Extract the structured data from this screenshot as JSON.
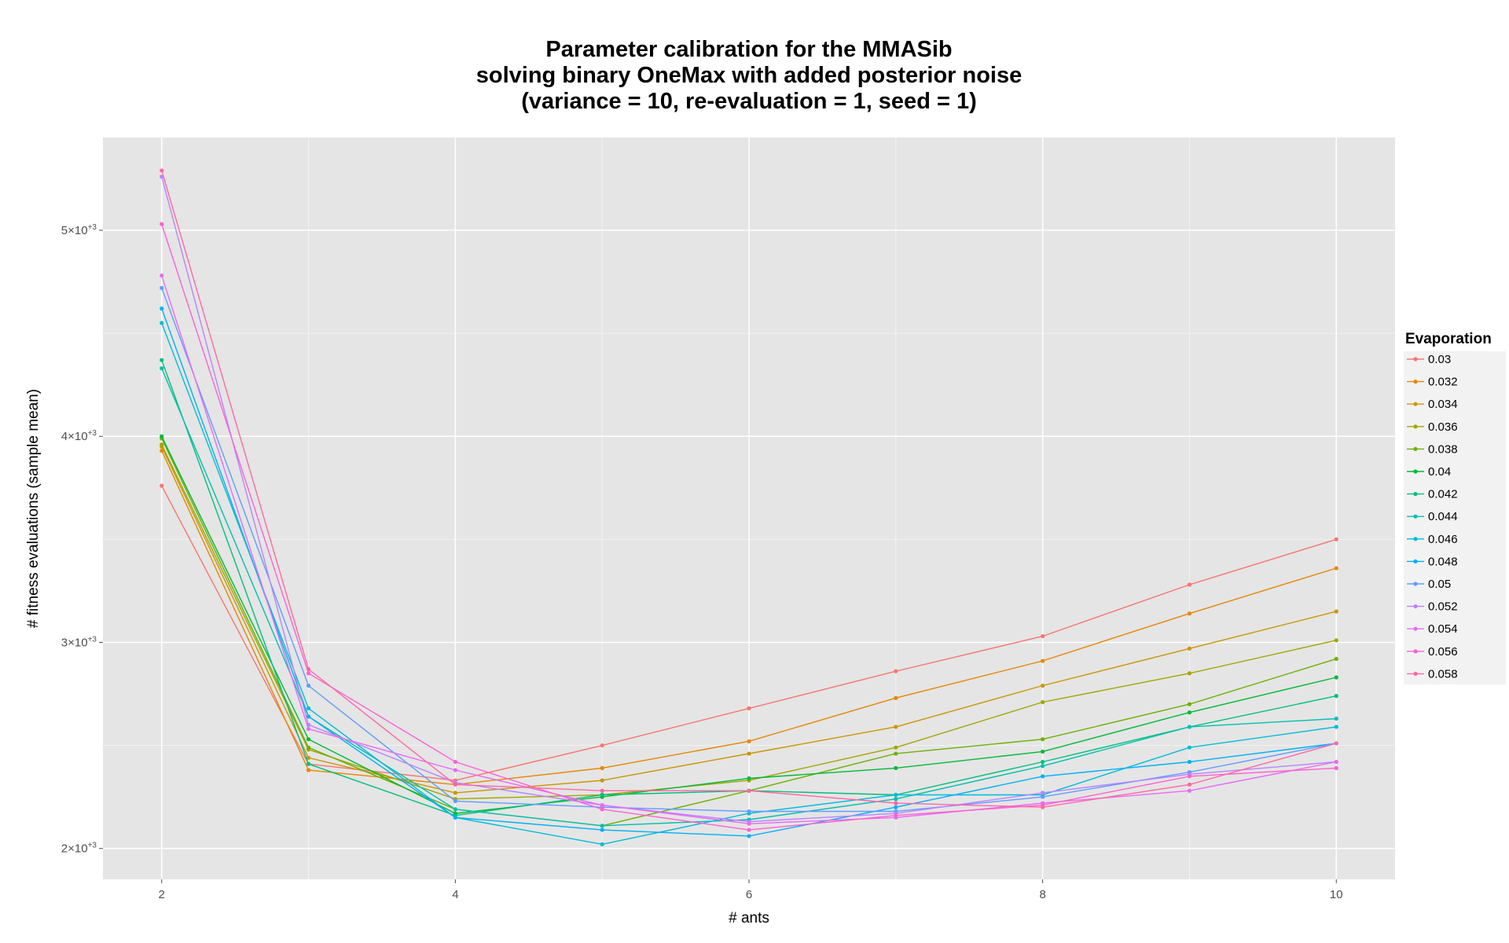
{
  "chart_data": {
    "type": "line",
    "title": [
      "Parameter calibration for the MMASib",
      "solving binary OneMax with added posterior noise",
      "(variance = 10, re-evaluation = 1, seed = 1)"
    ],
    "xlabel": "# ants",
    "ylabel": "# fitness evaluations (sample mean)",
    "x": [
      2,
      3,
      4,
      5,
      6,
      7,
      8,
      9,
      10
    ],
    "xlim": [
      1.6,
      10.4
    ],
    "ylim": [
      1850,
      5450
    ],
    "x_ticks": [
      2,
      4,
      6,
      8,
      10
    ],
    "x_tick_labels": [
      "2",
      "4",
      "6",
      "8",
      "10"
    ],
    "y_ticks": [
      2000,
      3000,
      4000,
      5000
    ],
    "y_tick_labels": [
      {
        "mantissa": "2",
        "exp": "+3"
      },
      {
        "mantissa": "3",
        "exp": "+3"
      },
      {
        "mantissa": "4",
        "exp": "+3"
      },
      {
        "mantissa": "5",
        "exp": "+3"
      }
    ],
    "y_tick_sep": "×10",
    "grid": true,
    "legend_title": "Evaporation",
    "legend_position": "right",
    "series": [
      {
        "name": "0.03",
        "color": "#F8766D",
        "values": [
          3760,
          2410,
          2330,
          2500,
          2680,
          2860,
          3030,
          3280,
          3500
        ]
      },
      {
        "name": "0.032",
        "color": "#E58700",
        "values": [
          3930,
          2380,
          2310,
          2390,
          2520,
          2730,
          2910,
          3140,
          3360
        ]
      },
      {
        "name": "0.034",
        "color": "#C99800",
        "values": [
          3950,
          2440,
          2270,
          2330,
          2460,
          2590,
          2790,
          2970,
          3150
        ]
      },
      {
        "name": "0.036",
        "color": "#A3A500",
        "values": [
          3960,
          2480,
          2240,
          2260,
          2330,
          2490,
          2710,
          2850,
          3010
        ]
      },
      {
        "name": "0.038",
        "color": "#6BB100",
        "values": [
          3990,
          2490,
          2190,
          2110,
          2280,
          2460,
          2530,
          2700,
          2920
        ]
      },
      {
        "name": "0.04",
        "color": "#00BA38",
        "values": [
          4000,
          2530,
          2170,
          2250,
          2340,
          2390,
          2470,
          2660,
          2830
        ]
      },
      {
        "name": "0.042",
        "color": "#00BF7D",
        "values": [
          4370,
          2410,
          2160,
          2260,
          2280,
          2260,
          2420,
          2590,
          2740
        ]
      },
      {
        "name": "0.044",
        "color": "#00C0AF",
        "values": [
          4330,
          2640,
          2190,
          2110,
          2140,
          2240,
          2400,
          2590,
          2630
        ]
      },
      {
        "name": "0.046",
        "color": "#00BCD8",
        "values": [
          4550,
          2680,
          2150,
          2020,
          2170,
          2260,
          2260,
          2490,
          2590
        ]
      },
      {
        "name": "0.048",
        "color": "#00B0F6",
        "values": [
          4620,
          2640,
          2150,
          2090,
          2060,
          2200,
          2350,
          2420,
          2510
        ]
      },
      {
        "name": "0.05",
        "color": "#619CFF",
        "values": [
          4720,
          2790,
          2230,
          2200,
          2180,
          2180,
          2250,
          2370,
          2510
        ]
      },
      {
        "name": "0.052",
        "color": "#B983FF",
        "values": [
          5260,
          2600,
          2320,
          2210,
          2130,
          2170,
          2270,
          2360,
          2420
        ]
      },
      {
        "name": "0.054",
        "color": "#E76BF3",
        "values": [
          4780,
          2580,
          2380,
          2210,
          2120,
          2150,
          2220,
          2280,
          2420
        ]
      },
      {
        "name": "0.056",
        "color": "#FD61D1",
        "values": [
          5030,
          2850,
          2420,
          2190,
          2090,
          2160,
          2210,
          2350,
          2390
        ]
      },
      {
        "name": "0.058",
        "color": "#FF67A4",
        "values": [
          5290,
          2870,
          2310,
          2280,
          2280,
          2220,
          2200,
          2310,
          2510
        ]
      }
    ]
  }
}
